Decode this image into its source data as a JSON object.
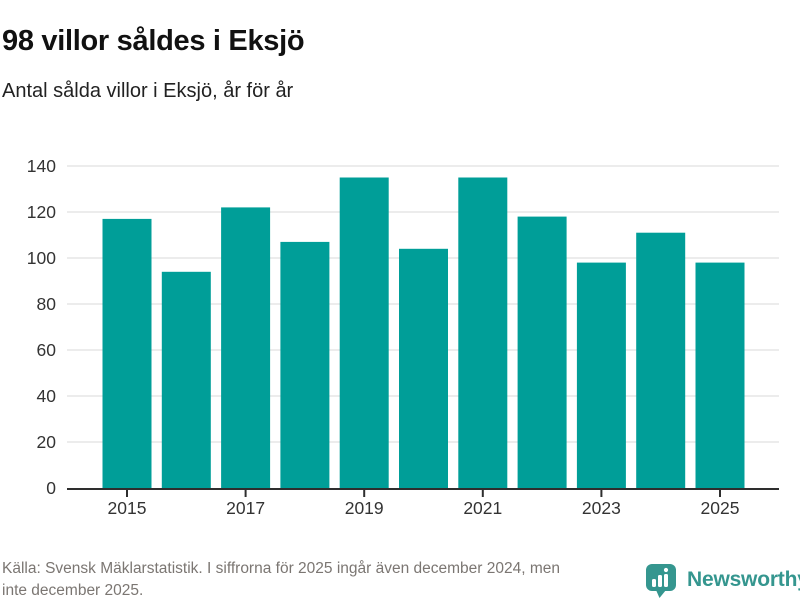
{
  "header": {
    "title": "98 villor såldes i Eksjö",
    "subtitle": "Antal sålda villor i Eksjö, år för år"
  },
  "chart_data": {
    "type": "bar",
    "categories": [
      "2015",
      "2016",
      "2017",
      "2018",
      "2019",
      "2020",
      "2021",
      "2022",
      "2023",
      "2024",
      "2025"
    ],
    "values": [
      117,
      94,
      122,
      107,
      135,
      104,
      135,
      118,
      98,
      111,
      98
    ],
    "title": "98 villor såldes i Eksjö",
    "subtitle": "Antal sålda villor i Eksjö, år för år",
    "xlabel": "",
    "ylabel": "",
    "ylim": [
      0,
      140
    ],
    "yticks": [
      0,
      20,
      40,
      60,
      80,
      100,
      120,
      140
    ],
    "xtick_labels": [
      "2015",
      "2017",
      "2019",
      "2021",
      "2023",
      "2025"
    ],
    "grid": true,
    "legend": false,
    "bar_color": "#009e98"
  },
  "footer": {
    "lines": [
      "Källa: Svensk Mäklarstatistik. I siffrorna för 2025 ingår även december 2024, men",
      "inte december 2025."
    ],
    "brand": "Newsworthy"
  },
  "colors": {
    "bar": "#009e98",
    "grid": "#e0e0e0",
    "axis": "#2e2e2e",
    "tick_label": "#333333",
    "title": "#111111",
    "subtitle": "#222222",
    "source": "#7b7672",
    "brand": "#35968f"
  }
}
